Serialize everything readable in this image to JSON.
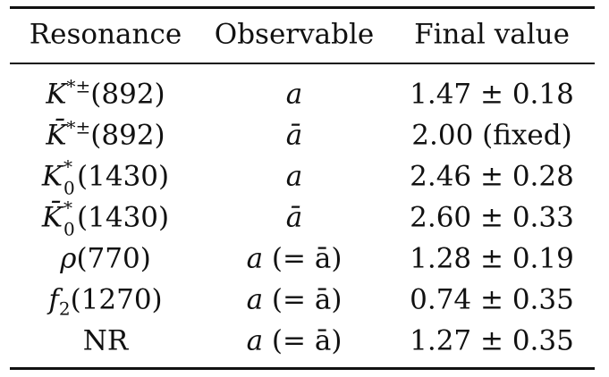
{
  "headers": {
    "resonance": "Resonance",
    "observable": "Observable",
    "final_value": "Final value"
  },
  "rows": [
    {
      "base": "K",
      "sup": "*±",
      "sub": "",
      "mass": "(892)",
      "obs_base": "a",
      "obs_suffix": "",
      "value": "1.47 ± 0.18"
    },
    {
      "base": "K̄",
      "sup": "*±",
      "sub": "",
      "mass": "(892)",
      "obs_base": "ā",
      "obs_suffix": "",
      "value": "2.00 (fixed)"
    },
    {
      "base": "K",
      "sup": "*",
      "sub": "0",
      "mass": "(1430)",
      "obs_base": "a",
      "obs_suffix": "",
      "value": "2.46 ± 0.28"
    },
    {
      "base": "K̄",
      "sup": "*",
      "sub": "0",
      "mass": "(1430)",
      "obs_base": "ā",
      "obs_suffix": "",
      "value": "2.60 ± 0.33"
    },
    {
      "base": "ρ",
      "sup": "",
      "sub": "",
      "mass": "(770)",
      "obs_base": "a",
      "obs_suffix": "(= ā)",
      "value": "1.28 ± 0.19"
    },
    {
      "base": "f",
      "sup": "",
      "sub": "2",
      "mass": "(1270)",
      "obs_base": "a",
      "obs_suffix": "(= ā)",
      "value": "0.74 ± 0.35"
    },
    {
      "base": "NR",
      "sup": "",
      "sub": "",
      "mass": "",
      "obs_base": "a",
      "obs_suffix": "(= ā)",
      "value": "1.27 ± 0.35"
    }
  ]
}
